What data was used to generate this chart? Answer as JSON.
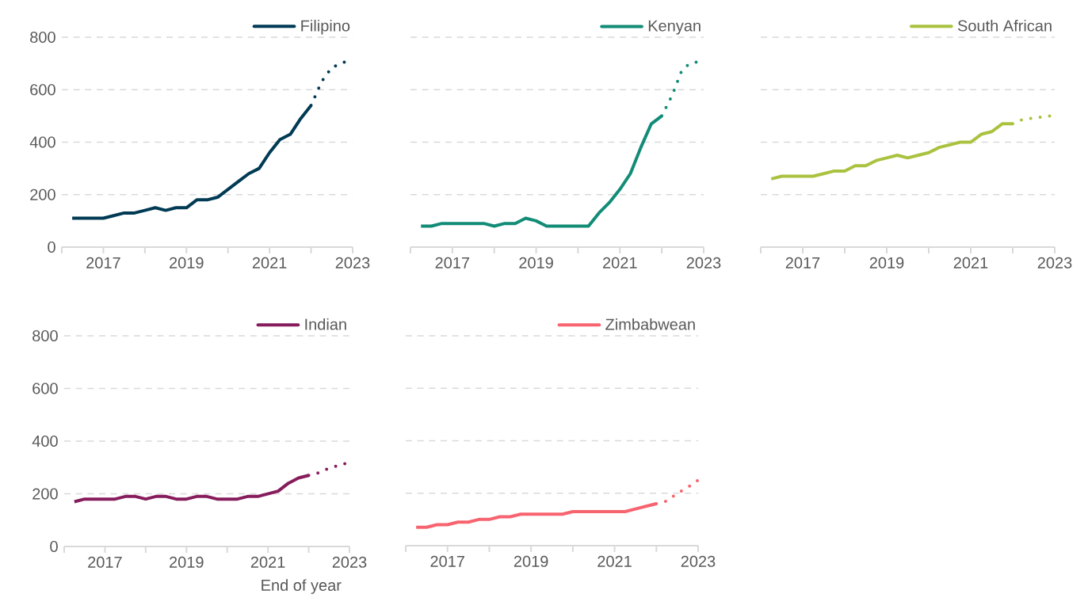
{
  "chart_data": [
    {
      "type": "line",
      "xlim": [
        2016,
        2023
      ],
      "ylim": [
        0,
        800
      ],
      "yticks": [
        0,
        200,
        400,
        600,
        800
      ],
      "grid": "y",
      "legend": "top right",
      "xticks": [
        {
          "value": 2016,
          "label": null
        },
        2017,
        {
          "value": 2018,
          "label": null
        },
        2019,
        {
          "value": 2020,
          "label": null
        },
        2021,
        {
          "value": 2022,
          "label": null
        },
        2023
      ],
      "series": [
        {
          "name": "Filipino",
          "color": "#003a54",
          "line_style": "solid",
          "x": [
            2016.25,
            2016.5,
            2016.75,
            2017,
            2017.25,
            2017.5,
            2017.75,
            2018,
            2018.25,
            2018.5,
            2018.75,
            2019,
            2019.25,
            2019.5,
            2019.75,
            2020,
            2020.25,
            2020.5,
            2020.75,
            2021,
            2021.25,
            2021.5,
            2021.75,
            2022
          ],
          "values": [
            110,
            110,
            110,
            110,
            120,
            130,
            130,
            140,
            150,
            140,
            150,
            150,
            180,
            180,
            190,
            220,
            250,
            280,
            300,
            360,
            410,
            430,
            490,
            540
          ]
        },
        {
          "color": "#003a54",
          "line_style": "dotted",
          "x": [
            2022,
            2022.25,
            2022.5,
            2022.8
          ],
          "values": [
            540,
            630,
            685,
            705
          ]
        }
      ]
    },
    {
      "type": "line",
      "xlim": [
        2016,
        2023
      ],
      "ylim": [
        0,
        800
      ],
      "yticks": [
        0,
        200,
        400,
        600,
        800
      ],
      "grid": "y",
      "legend": "top right",
      "tick_labels": "x",
      "xticks": [
        {
          "value": 2016,
          "label": null
        },
        2017,
        {
          "value": 2018,
          "label": null
        },
        2019,
        {
          "value": 2020,
          "label": null
        },
        2021,
        {
          "value": 2022,
          "label": null
        },
        2023
      ],
      "series": [
        {
          "name": "Kenyan",
          "color": "#128c77",
          "line_style": "solid",
          "x": [
            2016.25,
            2016.5,
            2016.75,
            2017,
            2017.25,
            2017.5,
            2017.75,
            2018,
            2018.25,
            2018.5,
            2018.75,
            2019,
            2019.25,
            2019.5,
            2019.75,
            2020,
            2020.25,
            2020.5,
            2020.75,
            2021,
            2021.25,
            2021.5,
            2021.75,
            2022
          ],
          "values": [
            80,
            80,
            90,
            90,
            90,
            90,
            90,
            80,
            90,
            90,
            110,
            100,
            80,
            80,
            80,
            80,
            80,
            130,
            170,
            220,
            280,
            380,
            470,
            500
          ]
        },
        {
          "color": "#128c77",
          "line_style": "dotted",
          "x": [
            2022,
            2022.25,
            2022.47,
            2022.63,
            2022.82
          ],
          "values": [
            500,
            580,
            670,
            695,
            705
          ]
        }
      ]
    },
    {
      "type": "line",
      "xlim": [
        2016,
        2023
      ],
      "ylim": [
        0,
        800
      ],
      "yticks": [
        0,
        200,
        400,
        600,
        800
      ],
      "grid": "y",
      "legend": "top right",
      "tick_labels": "x",
      "xticks": [
        {
          "value": 2016,
          "label": null
        },
        2017,
        {
          "value": 2018,
          "label": null
        },
        2019,
        {
          "value": 2020,
          "label": null
        },
        2021,
        {
          "value": 2022,
          "label": null
        },
        2023
      ],
      "series": [
        {
          "name": "South African",
          "color": "#a9c23f",
          "line_style": "solid",
          "x": [
            2016.25,
            2016.5,
            2016.75,
            2017,
            2017.25,
            2017.5,
            2017.75,
            2018,
            2018.25,
            2018.5,
            2018.75,
            2019,
            2019.25,
            2019.5,
            2019.75,
            2020,
            2020.25,
            2020.5,
            2020.75,
            2021,
            2021.25,
            2021.5,
            2021.75,
            2022
          ],
          "values": [
            260,
            270,
            270,
            270,
            270,
            280,
            290,
            290,
            310,
            310,
            330,
            340,
            350,
            340,
            350,
            360,
            380,
            390,
            400,
            400,
            430,
            440,
            470,
            470
          ]
        },
        {
          "color": "#a9c23f",
          "line_style": "dotted",
          "x": [
            2022,
            2022.25,
            2022.5,
            2022.75,
            2022.9
          ],
          "values": [
            470,
            488,
            492,
            497,
            500
          ]
        }
      ]
    },
    {
      "type": "line",
      "xlim": [
        2016,
        2023
      ],
      "ylim": [
        0,
        800
      ],
      "yticks": [
        0,
        200,
        400,
        600,
        800
      ],
      "grid": "y",
      "legend": "top right",
      "xlabel": "End of year",
      "xticks": [
        {
          "value": 2016,
          "label": null
        },
        2017,
        {
          "value": 2018,
          "label": null
        },
        2019,
        {
          "value": 2020,
          "label": null
        },
        2021,
        {
          "value": 2022,
          "label": null
        },
        2023
      ],
      "series": [
        {
          "name": "Indian",
          "color": "#871c5c",
          "line_style": "solid",
          "x": [
            2016.25,
            2016.5,
            2016.75,
            2017,
            2017.25,
            2017.5,
            2017.75,
            2018,
            2018.25,
            2018.5,
            2018.75,
            2019,
            2019.25,
            2019.5,
            2019.75,
            2020,
            2020.25,
            2020.5,
            2020.75,
            2021,
            2021.25,
            2021.5,
            2021.75,
            2022
          ],
          "values": [
            170,
            180,
            180,
            180,
            180,
            190,
            190,
            180,
            190,
            190,
            180,
            180,
            190,
            190,
            180,
            180,
            180,
            190,
            190,
            200,
            210,
            240,
            260,
            270
          ]
        },
        {
          "color": "#871c5c",
          "line_style": "dotted",
          "x": [
            2022,
            2022.25,
            2022.46,
            2022.68,
            2022.9
          ],
          "values": [
            270,
            280,
            295,
            305,
            315
          ]
        }
      ]
    },
    {
      "type": "line",
      "xlim": [
        2016,
        2023
      ],
      "ylim": [
        0,
        800
      ],
      "yticks": [
        0,
        200,
        400,
        600,
        800
      ],
      "grid": "y",
      "legend": "top right",
      "tick_labels": "x",
      "xticks": [
        {
          "value": 2016,
          "label": null
        },
        2017,
        {
          "value": 2018,
          "label": null
        },
        2019,
        {
          "value": 2020,
          "label": null
        },
        2021,
        {
          "value": 2022,
          "label": null
        },
        2023
      ],
      "series": [
        {
          "name": "Zimbabwean",
          "color": "#f7646f",
          "line_style": "solid",
          "x": [
            2016.25,
            2016.5,
            2016.75,
            2017,
            2017.25,
            2017.5,
            2017.75,
            2018,
            2018.25,
            2018.5,
            2018.75,
            2019,
            2019.25,
            2019.5,
            2019.75,
            2020,
            2020.25,
            2020.5,
            2020.75,
            2021,
            2021.25,
            2021.5,
            2021.75,
            2022
          ],
          "values": [
            70,
            70,
            80,
            80,
            90,
            90,
            100,
            100,
            110,
            110,
            120,
            120,
            120,
            120,
            120,
            130,
            130,
            130,
            130,
            130,
            130,
            140,
            150,
            160
          ]
        },
        {
          "color": "#f7646f",
          "line_style": "dotted",
          "x": [
            2022,
            2022.25,
            2022.5,
            2022.75,
            2023
          ],
          "values": [
            160,
            170,
            200,
            222,
            250
          ]
        }
      ]
    }
  ]
}
